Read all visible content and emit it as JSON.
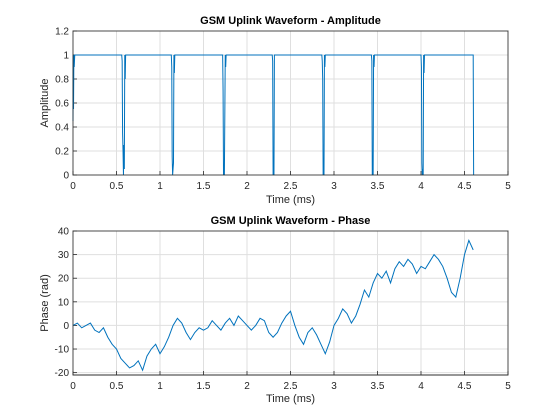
{
  "figure": {
    "background": "#ffffff"
  },
  "chart_data": [
    {
      "type": "line",
      "title": "GSM Uplink Waveform - Amplitude",
      "xlabel": "Time (ms)",
      "ylabel": "Amplitude",
      "xlim": [
        0,
        5
      ],
      "ylim": [
        0,
        1.2
      ],
      "xticks": [
        0,
        0.5,
        1,
        1.5,
        2,
        2.5,
        3,
        3.5,
        4,
        4.5,
        5
      ],
      "yticks": [
        0,
        0.2,
        0.4,
        0.6,
        0.8,
        1,
        1.2
      ],
      "grid": true,
      "color": "#0072bd",
      "series": [
        {
          "x": [
            0,
            0.003,
            0.006,
            0.01,
            0.014,
            0.02,
            0.56,
            0.565,
            0.57,
            0.575,
            0.58,
            0.585,
            0.59,
            0.595,
            0.6,
            0.605,
            1.13,
            1.135,
            1.14,
            1.145,
            1.15,
            1.155,
            1.16,
            1.165,
            1.17,
            1.72,
            1.725,
            1.73,
            1.735,
            1.74,
            1.745,
            1.75,
            1.755,
            1.76,
            2.29,
            2.295,
            2.3,
            2.305,
            2.31,
            2.315,
            2.86,
            2.865,
            2.87,
            2.875,
            2.88,
            2.885,
            2.89,
            2.895,
            2.9,
            3.43,
            3.435,
            3.44,
            3.445,
            3.45,
            3.455,
            3.46,
            3.465,
            4.0,
            4.005,
            4.01,
            4.015,
            4.02,
            4.025,
            4.03,
            4.035,
            4.04,
            4.6,
            4.605
          ],
          "y": [
            0.45,
            1.0,
            0.55,
            1.0,
            0.9,
            1.0,
            1.0,
            0.95,
            0.35,
            0.2,
            0.0,
            0.25,
            0.05,
            1.0,
            0.8,
            1.0,
            1.0,
            0.9,
            0.15,
            0.0,
            0.05,
            0.1,
            1.0,
            0.85,
            1.0,
            1.0,
            0.7,
            0.0,
            0.02,
            0.0,
            0.5,
            1.0,
            0.9,
            1.0,
            1.0,
            0.95,
            0.0,
            0.01,
            0.0,
            1.0,
            1.0,
            0.95,
            0.8,
            0.0,
            0.02,
            0.0,
            1.0,
            0.9,
            1.0,
            1.0,
            0.95,
            0.0,
            0.01,
            0.0,
            1.0,
            0.9,
            1.0,
            1.0,
            0.9,
            0.1,
            0.0,
            0.05,
            0.0,
            1.0,
            0.85,
            1.0,
            1.0,
            0.0
          ]
        }
      ]
    },
    {
      "type": "line",
      "title": "GSM Uplink Waveform - Phase",
      "xlabel": "Time (ms)",
      "ylabel": "Phase (rad)",
      "xlim": [
        0,
        5
      ],
      "ylim": [
        -21,
        40
      ],
      "xticks": [
        0,
        0.5,
        1,
        1.5,
        2,
        2.5,
        3,
        3.5,
        4,
        4.5,
        5
      ],
      "yticks": [
        -20,
        -10,
        0,
        10,
        20,
        30,
        40
      ],
      "grid": true,
      "color": "#0072bd",
      "series": [
        {
          "x": [
            0,
            0.05,
            0.1,
            0.15,
            0.2,
            0.25,
            0.3,
            0.35,
            0.4,
            0.45,
            0.5,
            0.55,
            0.6,
            0.65,
            0.7,
            0.75,
            0.8,
            0.85,
            0.9,
            0.95,
            1.0,
            1.05,
            1.1,
            1.15,
            1.2,
            1.25,
            1.3,
            1.35,
            1.4,
            1.45,
            1.5,
            1.55,
            1.6,
            1.65,
            1.7,
            1.75,
            1.8,
            1.85,
            1.9,
            1.95,
            2.0,
            2.05,
            2.1,
            2.15,
            2.2,
            2.25,
            2.3,
            2.35,
            2.4,
            2.45,
            2.5,
            2.55,
            2.6,
            2.65,
            2.7,
            2.75,
            2.8,
            2.85,
            2.9,
            2.95,
            3.0,
            3.05,
            3.1,
            3.15,
            3.2,
            3.25,
            3.3,
            3.35,
            3.4,
            3.45,
            3.5,
            3.55,
            3.6,
            3.65,
            3.7,
            3.75,
            3.8,
            3.85,
            3.9,
            3.95,
            4.0,
            4.05,
            4.1,
            4.15,
            4.2,
            4.25,
            4.3,
            4.35,
            4.4,
            4.45,
            4.5,
            4.55,
            4.6
          ],
          "y": [
            0,
            1,
            -1,
            0,
            1,
            -2,
            -3,
            -1,
            -5,
            -8,
            -10,
            -14,
            -16,
            -18,
            -17,
            -15,
            -19,
            -13,
            -10,
            -8,
            -12,
            -9,
            -5,
            0,
            3,
            1,
            -3,
            -6,
            -3,
            -1,
            -2,
            -1,
            2,
            0,
            -2,
            1,
            3,
            0,
            4,
            2,
            0,
            -2,
            0,
            3,
            2,
            -3,
            -5,
            -3,
            1,
            4,
            6,
            0,
            -5,
            -8,
            -3,
            -1,
            -4,
            -8,
            -12,
            -7,
            0,
            3,
            7,
            5,
            1,
            4,
            9,
            15,
            12,
            18,
            22,
            20,
            23,
            18,
            24,
            27,
            25,
            28,
            26,
            22,
            25,
            24,
            27,
            30,
            28,
            25,
            20,
            14,
            12,
            20,
            30,
            36,
            32
          ]
        }
      ]
    }
  ]
}
